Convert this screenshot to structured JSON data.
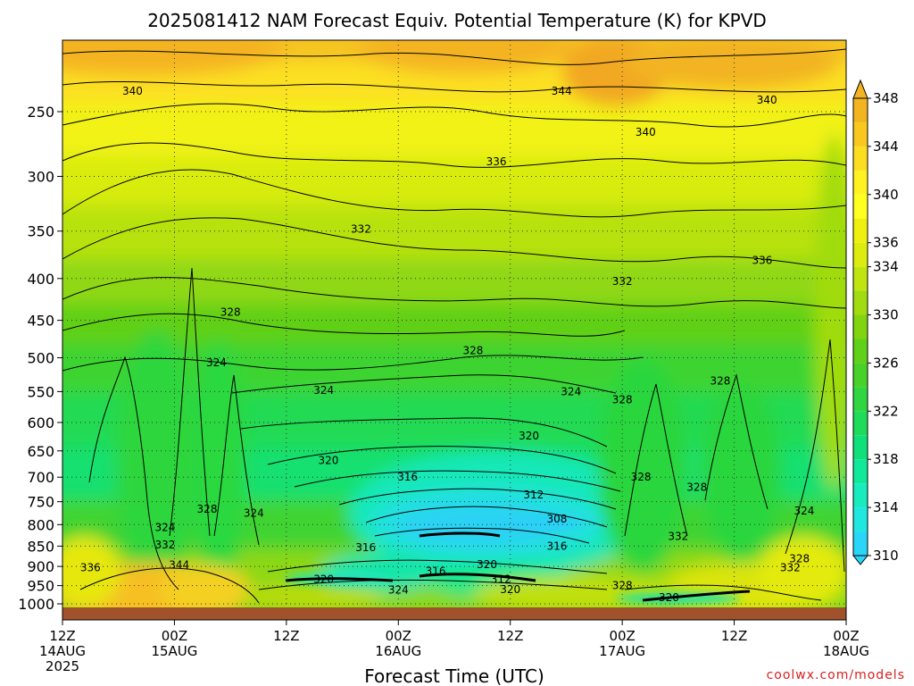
{
  "chart_data": {
    "type": "heatmap",
    "title": "2025081412 NAM Forecast Equiv. Potential Temperature (K) for KPVD",
    "xlabel": "Forecast Time (UTC)",
    "ylabel": "",
    "y_scale": "log-pressure",
    "y_ticks": [
      250,
      300,
      350,
      400,
      450,
      500,
      550,
      600,
      650,
      700,
      750,
      800,
      850,
      900,
      950,
      1000
    ],
    "x_ticks": [
      {
        "hour": 0,
        "line1": "12Z",
        "line2": "14AUG",
        "line3": "2025"
      },
      {
        "hour": 12,
        "line1": "00Z",
        "line2": "15AUG",
        "line3": ""
      },
      {
        "hour": 24,
        "line1": "12Z",
        "line2": "",
        "line3": ""
      },
      {
        "hour": 36,
        "line1": "00Z",
        "line2": "16AUG",
        "line3": ""
      },
      {
        "hour": 48,
        "line1": "12Z",
        "line2": "",
        "line3": ""
      },
      {
        "hour": 60,
        "line1": "00Z",
        "line2": "17AUG",
        "line3": ""
      },
      {
        "hour": 72,
        "line1": "12Z",
        "line2": "",
        "line3": ""
      },
      {
        "hour": 84,
        "line1": "00Z",
        "line2": "18AUG",
        "line3": ""
      }
    ],
    "xlim": [
      0,
      84
    ],
    "ylim": [
      1000,
      200
    ],
    "colorbar": {
      "levels": [
        310,
        312,
        314,
        316,
        318,
        320,
        322,
        324,
        326,
        328,
        330,
        332,
        334,
        336,
        338,
        340,
        342,
        344,
        346,
        348
      ],
      "labels": [
        310,
        314,
        318,
        322,
        326,
        330,
        334,
        336,
        340,
        344,
        348
      ],
      "colors": [
        "#29d6f7",
        "#20e8df",
        "#18ecbf",
        "#10e89a",
        "#10e07a",
        "#20da5a",
        "#30d640",
        "#48d228",
        "#60d018",
        "#80d410",
        "#a0dc10",
        "#c0e410",
        "#dcec10",
        "#f0f010",
        "#ffff20",
        "#fff220",
        "#fcde20",
        "#f8c820",
        "#f2b420"
      ]
    },
    "contour_labels": [
      {
        "hour": 7.5,
        "p": 236,
        "value": "340"
      },
      {
        "hour": 53.5,
        "p": 236,
        "value": "344"
      },
      {
        "hour": 75.5,
        "p": 242,
        "value": "340"
      },
      {
        "hour": 62.5,
        "p": 265,
        "value": "340"
      },
      {
        "hour": 46.5,
        "p": 288,
        "value": "336"
      },
      {
        "hour": 32.0,
        "p": 348,
        "value": "332"
      },
      {
        "hour": 75.0,
        "p": 380,
        "value": "336"
      },
      {
        "hour": 60.0,
        "p": 403,
        "value": "332"
      },
      {
        "hour": 18.0,
        "p": 440,
        "value": "328"
      },
      {
        "hour": 44.0,
        "p": 490,
        "value": "328"
      },
      {
        "hour": 16.5,
        "p": 507,
        "value": "324"
      },
      {
        "hour": 28.0,
        "p": 548,
        "value": "324"
      },
      {
        "hour": 54.5,
        "p": 550,
        "value": "324"
      },
      {
        "hour": 70.5,
        "p": 534,
        "value": "328"
      },
      {
        "hour": 60.0,
        "p": 563,
        "value": "328"
      },
      {
        "hour": 50.0,
        "p": 623,
        "value": "320"
      },
      {
        "hour": 28.5,
        "p": 668,
        "value": "320"
      },
      {
        "hour": 37.0,
        "p": 700,
        "value": "316"
      },
      {
        "hour": 50.5,
        "p": 736,
        "value": "312"
      },
      {
        "hour": 62.0,
        "p": 700,
        "value": "328"
      },
      {
        "hour": 68.0,
        "p": 720,
        "value": "328"
      },
      {
        "hour": 15.5,
        "p": 766,
        "value": "328"
      },
      {
        "hour": 20.5,
        "p": 775,
        "value": "324"
      },
      {
        "hour": 53.0,
        "p": 787,
        "value": "308"
      },
      {
        "hour": 79.5,
        "p": 770,
        "value": "324"
      },
      {
        "hour": 11.0,
        "p": 806,
        "value": "324"
      },
      {
        "hour": 66.0,
        "p": 827,
        "value": "332"
      },
      {
        "hour": 11.0,
        "p": 847,
        "value": "332"
      },
      {
        "hour": 32.5,
        "p": 853,
        "value": "316"
      },
      {
        "hour": 53.0,
        "p": 850,
        "value": "316"
      },
      {
        "hour": 79.0,
        "p": 881,
        "value": "328"
      },
      {
        "hour": 12.5,
        "p": 896,
        "value": "344"
      },
      {
        "hour": 3.0,
        "p": 903,
        "value": "336"
      },
      {
        "hour": 45.5,
        "p": 895,
        "value": "320"
      },
      {
        "hour": 40.0,
        "p": 912,
        "value": "316"
      },
      {
        "hour": 78.0,
        "p": 903,
        "value": "332"
      },
      {
        "hour": 28.0,
        "p": 933,
        "value": "320"
      },
      {
        "hour": 47.0,
        "p": 933,
        "value": "312"
      },
      {
        "hour": 48.0,
        "p": 960,
        "value": "320"
      },
      {
        "hour": 36.0,
        "p": 962,
        "value": "324"
      },
      {
        "hour": 60.0,
        "p": 950,
        "value": "328"
      },
      {
        "hour": 65.0,
        "p": 982,
        "value": "320"
      }
    ],
    "credit": "coolwx.com/models"
  }
}
